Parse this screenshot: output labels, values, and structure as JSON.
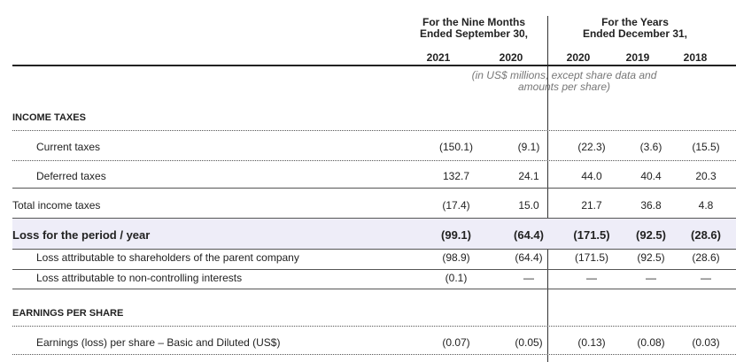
{
  "header": {
    "groups": [
      {
        "lines": [
          "For the Nine Months",
          "Ended September 30,"
        ]
      },
      {
        "lines": [
          "For the Years",
          "Ended December 31,"
        ]
      }
    ],
    "years": [
      "2021",
      "2020",
      "2020",
      "2019",
      "2018"
    ],
    "note": [
      "(in US$ millions, except share data and",
      "amounts per share)"
    ]
  },
  "table": {
    "rows": [
      {
        "kind": "section",
        "label": "INCOME TAXES"
      },
      {
        "kind": "sub",
        "label": "Current taxes",
        "values": [
          "(150.1)",
          "(9.1)",
          "(22.3)",
          "(3.6)",
          "(15.5)"
        ]
      },
      {
        "kind": "sub",
        "label": "Deferred taxes",
        "values": [
          "132.7",
          "24.1",
          "44.0",
          "40.4",
          "20.3"
        ]
      },
      {
        "kind": "plain",
        "label": "Total income taxes",
        "values": [
          "(17.4)",
          "15.0",
          "21.7",
          "36.8",
          "4.8"
        ]
      },
      {
        "kind": "total",
        "label": "Loss for the period / year",
        "values": [
          "(99.1)",
          "(64.4)",
          "(171.5)",
          "(92.5)",
          "(28.6)"
        ]
      },
      {
        "kind": "sub",
        "label": "Loss attributable to shareholders of the parent company",
        "values": [
          "(98.9)",
          "(64.4)",
          "(171.5)",
          "(92.5)",
          "(28.6)"
        ]
      },
      {
        "kind": "sub",
        "label": "Loss attributable to non-controlling interests",
        "values": [
          "(0.1)",
          "—",
          "—",
          "—",
          "—"
        ]
      },
      {
        "kind": "section",
        "label": "EARNINGS PER SHARE"
      },
      {
        "kind": "sub",
        "label": "Earnings (loss) per share – Basic and Diluted (US$)",
        "values": [
          "(0.07)",
          "(0.05)",
          "(0.13)",
          "(0.08)",
          "(0.03)"
        ]
      }
    ]
  }
}
